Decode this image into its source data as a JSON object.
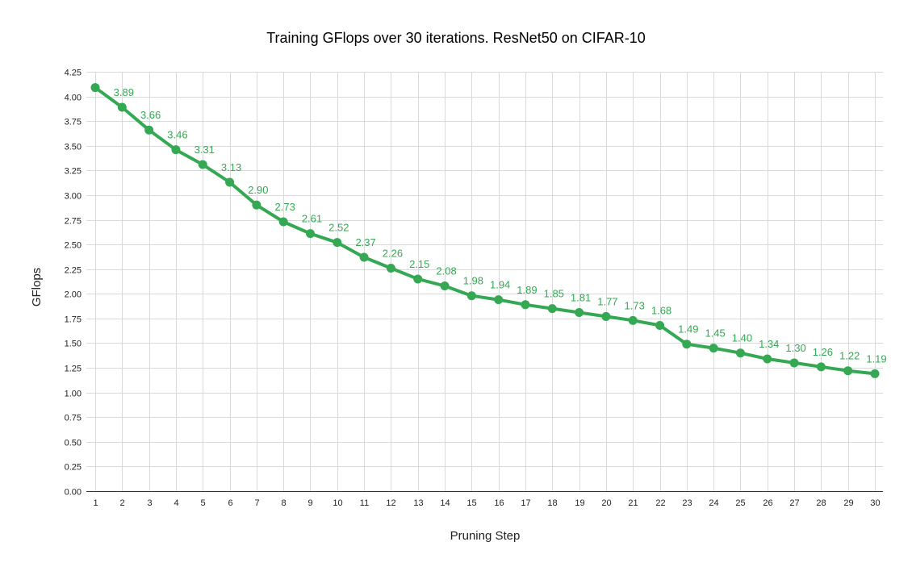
{
  "colors": {
    "series": "#34a853",
    "grid": "#d9d9d9",
    "axis": "#333333"
  },
  "chart_data": {
    "type": "line",
    "title": "Training GFlops over 30 iterations. ResNet50 on CIFAR-10",
    "xlabel": "Pruning Step",
    "ylabel": "GFlops",
    "ylim": [
      0,
      4.25
    ],
    "y_ticks": [
      "0.00",
      "0.25",
      "0.50",
      "0.75",
      "1.00",
      "1.25",
      "1.50",
      "1.75",
      "2.00",
      "2.25",
      "2.50",
      "2.75",
      "3.00",
      "3.25",
      "3.50",
      "3.75",
      "4.00",
      "4.25"
    ],
    "x": [
      1,
      2,
      3,
      4,
      5,
      6,
      7,
      8,
      9,
      10,
      11,
      12,
      13,
      14,
      15,
      16,
      17,
      18,
      19,
      20,
      21,
      22,
      23,
      24,
      25,
      26,
      27,
      28,
      29,
      30
    ],
    "series": [
      {
        "values": [
          4.09,
          3.89,
          3.66,
          3.46,
          3.31,
          3.13,
          2.9,
          2.73,
          2.61,
          2.52,
          2.37,
          2.26,
          2.15,
          2.08,
          1.98,
          1.94,
          1.89,
          1.85,
          1.81,
          1.77,
          1.73,
          1.68,
          1.49,
          1.45,
          1.4,
          1.34,
          1.3,
          1.26,
          1.22,
          1.19
        ],
        "labels": [
          "",
          "3.89",
          "3.66",
          "3.46",
          "3.31",
          "3.13",
          "2.90",
          "2.73",
          "2.61",
          "2.52",
          "2.37",
          "2.26",
          "2.15",
          "2.08",
          "1.98",
          "1.94",
          "1.89",
          "1.85",
          "1.81",
          "1.77",
          "1.73",
          "1.68",
          "1.49",
          "1.45",
          "1.40",
          "1.34",
          "1.30",
          "1.26",
          "1.22",
          "1.19"
        ]
      }
    ],
    "grid": true,
    "legend": "none"
  }
}
